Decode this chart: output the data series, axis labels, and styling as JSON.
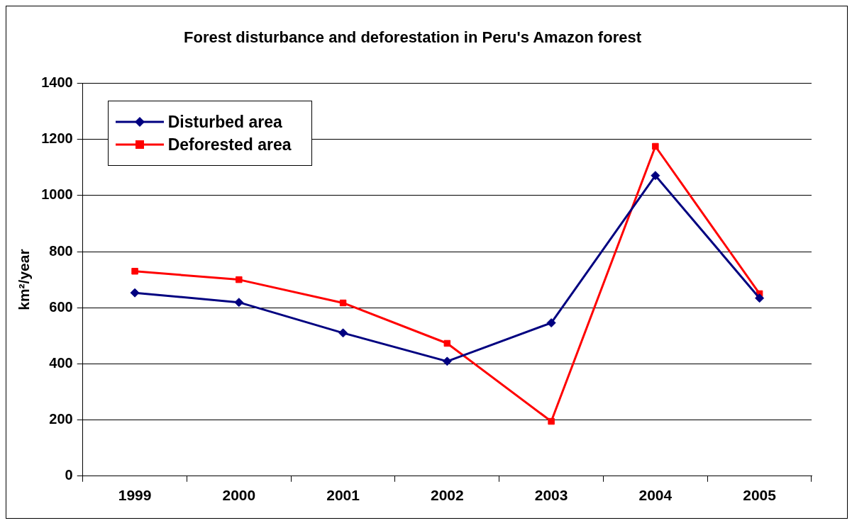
{
  "chart_data": {
    "type": "line",
    "title": "Forest disturbance and deforestation in Peru's Amazon forest",
    "ylabel": "km²/year",
    "categories": [
      "1999",
      "2000",
      "2001",
      "2002",
      "2003",
      "2004",
      "2005"
    ],
    "series": [
      {
        "name": "Disturbed area",
        "color": "#000080",
        "marker": "diamond",
        "values": [
          653,
          619,
          510,
          409,
          546,
          1071,
          634
        ]
      },
      {
        "name": "Deforested area",
        "color": "#ff0000",
        "marker": "square",
        "values": [
          730,
          700,
          617,
          473,
          195,
          1175,
          650
        ]
      }
    ],
    "ylim": [
      0,
      1400
    ],
    "yticks": [
      0,
      200,
      400,
      600,
      800,
      1000,
      1200,
      1400
    ],
    "grid": "y",
    "legend": "top left",
    "line_style": "solid"
  }
}
